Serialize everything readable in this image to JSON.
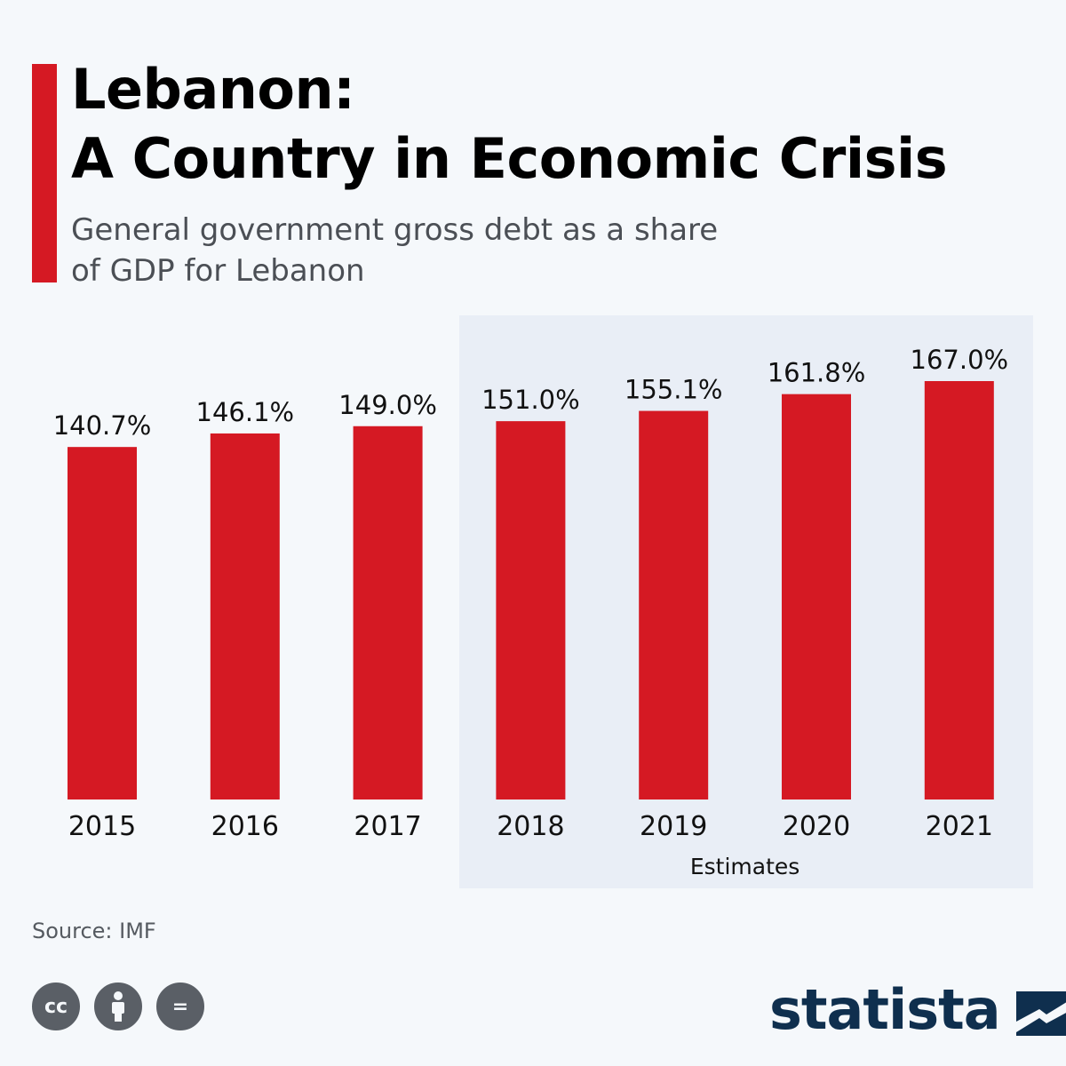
{
  "header": {
    "title_line1": "Lebanon:",
    "title_line2": "A Country in Economic Crisis",
    "subtitle_line1": "General government gross debt as a share",
    "subtitle_line2": "of GDP for Lebanon"
  },
  "footer": {
    "source": "Source: IMF",
    "cc_icons": [
      "cc-icon",
      "attribution-icon",
      "no-derivatives-icon"
    ],
    "cc_label": "cc",
    "nd_label": "=",
    "logo_text": "statista"
  },
  "colors": {
    "bar": "#d51923",
    "estimate_shade": "#e9eef6",
    "background": "#f5f8fb",
    "logo": "#0f2f4e"
  },
  "chart_data": {
    "type": "bar",
    "categories": [
      "2015",
      "2016",
      "2017",
      "2018",
      "2019",
      "2020",
      "2021"
    ],
    "values": [
      140.7,
      146.1,
      149.0,
      151.0,
      155.1,
      161.8,
      167.0
    ],
    "value_labels": [
      "140.7%",
      "146.1%",
      "149.0%",
      "151.0%",
      "155.1%",
      "161.8%",
      "167.0%"
    ],
    "estimates_label": "Estimates",
    "estimate_categories": [
      "2018",
      "2019",
      "2020",
      "2021"
    ],
    "unit": "%",
    "ylim": [
      0,
      200
    ],
    "grid": false,
    "legend": "none"
  }
}
